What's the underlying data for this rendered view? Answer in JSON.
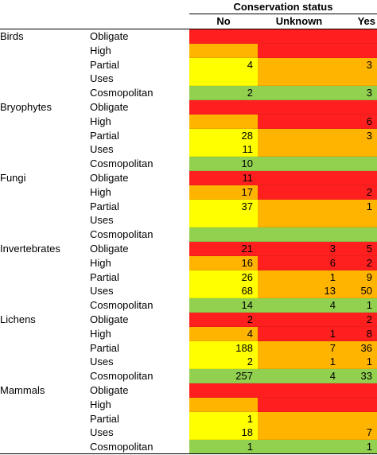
{
  "header": {
    "title": "Conservation status",
    "columns": [
      "No",
      "Unknown",
      "Yes"
    ]
  },
  "colors": {
    "red": "#ff1f1f",
    "orange": "#ffb400",
    "yellow": "#ffff00",
    "green": "#92d050"
  },
  "groups": [
    {
      "name": "Birds",
      "rows": [
        {
          "level": "Obligate",
          "color": "red",
          "cells": [
            "",
            "",
            ""
          ]
        },
        {
          "level": "High",
          "color": "orange_red",
          "cells": [
            "",
            "",
            ""
          ]
        },
        {
          "level": "Partial",
          "color": "yellow_orange",
          "cells": [
            "4",
            "",
            "3"
          ]
        },
        {
          "level": "Uses",
          "color": "yellow",
          "cells": [
            "",
            "",
            ""
          ]
        },
        {
          "level": "Cosmopolitan",
          "color": "green",
          "cells": [
            "2",
            "",
            "3"
          ]
        }
      ]
    },
    {
      "name": "Bryophytes",
      "rows": [
        {
          "level": "Obligate",
          "color": "red",
          "cells": [
            "",
            "",
            ""
          ]
        },
        {
          "level": "High",
          "color": "orange_red",
          "cells": [
            "",
            "",
            "6"
          ]
        },
        {
          "level": "Partial",
          "color": "yellow_orange",
          "cells": [
            "28",
            "",
            "3"
          ]
        },
        {
          "level": "Uses",
          "color": "yellow_orange2",
          "cells": [
            "11",
            "",
            ""
          ]
        },
        {
          "level": "Cosmopolitan",
          "color": "green",
          "cells": [
            "10",
            "",
            ""
          ]
        }
      ]
    },
    {
      "name": "Fungi",
      "rows": [
        {
          "level": "Obligate",
          "color": "red",
          "cells": [
            "11",
            "",
            ""
          ]
        },
        {
          "level": "High",
          "color": "orange_red",
          "cells": [
            "17",
            "",
            "2"
          ]
        },
        {
          "level": "Partial",
          "color": "yellow_orange",
          "cells": [
            "37",
            "",
            "1"
          ]
        },
        {
          "level": "Uses",
          "color": "yellow_orange2",
          "cells": [
            "",
            "",
            ""
          ]
        },
        {
          "level": "Cosmopolitan",
          "color": "green",
          "cells": [
            "",
            "",
            ""
          ]
        }
      ]
    },
    {
      "name": "Invertebrates",
      "rows": [
        {
          "level": "Obligate",
          "color": "red",
          "cells": [
            "21",
            "3",
            "5"
          ]
        },
        {
          "level": "High",
          "color": "orange_red",
          "cells": [
            "16",
            "6",
            "2"
          ]
        },
        {
          "level": "Partial",
          "color": "yellow_orange",
          "cells": [
            "26",
            "1",
            "9"
          ]
        },
        {
          "level": "Uses",
          "color": "yellow_orange2",
          "cells": [
            "68",
            "13",
            "50"
          ]
        },
        {
          "level": "Cosmopolitan",
          "color": "green",
          "cells": [
            "14",
            "4",
            "1"
          ]
        }
      ]
    },
    {
      "name": "Lichens",
      "rows": [
        {
          "level": "Obligate",
          "color": "red",
          "cells": [
            "2",
            "",
            "2"
          ]
        },
        {
          "level": "High",
          "color": "orange_red",
          "cells": [
            "4",
            "1",
            "8"
          ]
        },
        {
          "level": "Partial",
          "color": "yellow_orange",
          "cells": [
            "188",
            "7",
            "36"
          ]
        },
        {
          "level": "Uses",
          "color": "yellow_orange2",
          "cells": [
            "2",
            "1",
            "1"
          ]
        },
        {
          "level": "Cosmopolitan",
          "color": "green",
          "cells": [
            "257",
            "4",
            "33"
          ]
        }
      ]
    },
    {
      "name": "Mammals",
      "rows": [
        {
          "level": "Obligate",
          "color": "red",
          "cells": [
            "",
            "",
            ""
          ]
        },
        {
          "level": "High",
          "color": "orange_red",
          "cells": [
            "",
            "",
            ""
          ]
        },
        {
          "level": "Partial",
          "color": "yellow_orange",
          "cells": [
            "1",
            "",
            ""
          ]
        },
        {
          "level": "Uses",
          "color": "yellow_orange2",
          "cells": [
            "18",
            "",
            "7"
          ]
        },
        {
          "level": "Cosmopolitan",
          "color": "green",
          "cells": [
            "1",
            "",
            "1"
          ]
        }
      ]
    }
  ]
}
